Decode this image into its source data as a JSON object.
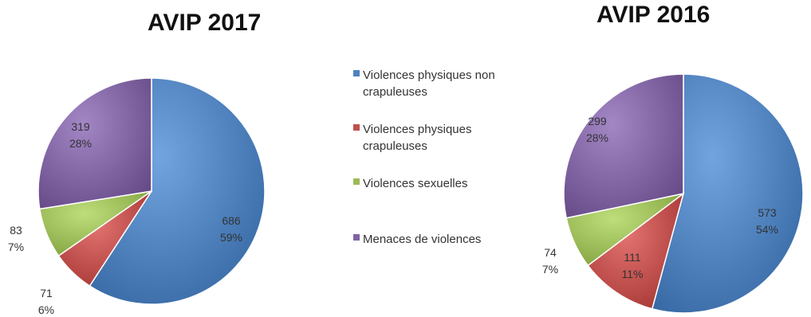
{
  "chart_data": [
    {
      "type": "pie",
      "title": "AVIP 2017",
      "categories": [
        "Violences physiques non crapuleuses",
        "Violences physiques crapuleuses",
        "Violences sexuelles",
        "Menaces de violences"
      ],
      "values": [
        686,
        71,
        83,
        319
      ],
      "percent_labels": [
        "59%",
        "6%",
        "7%",
        "28%"
      ],
      "colors": [
        "#4F81BD",
        "#C0504D",
        "#9BBB59",
        "#8064A2"
      ]
    },
    {
      "type": "pie",
      "title": "AVIP 2016",
      "categories": [
        "Violences physiques non crapuleuses",
        "Violences physiques crapuleuses",
        "Violences sexuelles",
        "Menaces de violences"
      ],
      "values": [
        573,
        111,
        74,
        299
      ],
      "percent_labels": [
        "54%",
        "11%",
        "7%",
        "28%"
      ],
      "colors": [
        "#4F81BD",
        "#C0504D",
        "#9BBB59",
        "#8064A2"
      ]
    }
  ],
  "legend": {
    "position": "center",
    "items": [
      {
        "label": "Violences physiques non crapuleuses",
        "color": "#4F81BD"
      },
      {
        "label": "Violences physiques crapuleuses",
        "color": "#C0504D"
      },
      {
        "label": "Violences sexuelles",
        "color": "#9BBB59"
      },
      {
        "label": "Menaces de violences",
        "color": "#8064A2"
      }
    ]
  }
}
